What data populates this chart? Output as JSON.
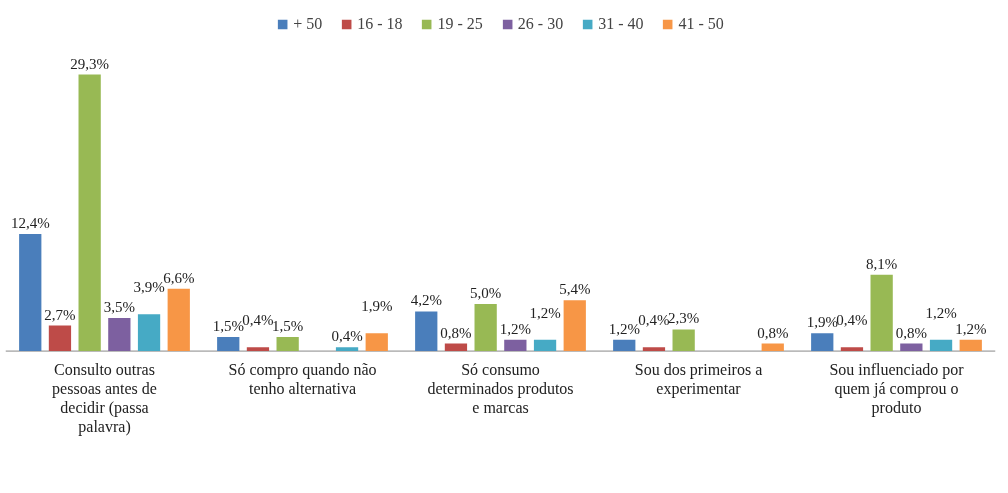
{
  "chart_data": {
    "type": "bar",
    "categories": [
      "Consulto outras pessoas antes de decidir (passa palavra)",
      "Só compro quando não tenho alternativa",
      "Só consumo determinados produtos e marcas",
      "Sou dos primeiros a experimentar",
      "Sou influenciado por quem já comprou o produto"
    ],
    "series": [
      {
        "name": "+ 50",
        "color": "#4a7ebb",
        "values": [
          12.4,
          1.5,
          4.2,
          1.2,
          1.9
        ],
        "value_labels": [
          "12,4%",
          "1,5%",
          "4,2%",
          "1,2%",
          "1,9%"
        ]
      },
      {
        "name": "16 - 18",
        "color": "#be4b48",
        "values": [
          2.7,
          0.4,
          0.8,
          0.4,
          0.4
        ],
        "value_labels": [
          "2,7%",
          "0,4%",
          "0,8%",
          "0,4%",
          "0,4%"
        ]
      },
      {
        "name": "19 - 25",
        "color": "#98b954",
        "values": [
          29.3,
          1.5,
          5.0,
          2.3,
          8.1
        ],
        "value_labels": [
          "29,3%",
          "1,5%",
          "5,0%",
          "2,3%",
          "8,1%"
        ]
      },
      {
        "name": "26 - 30",
        "color": "#7d60a0",
        "values": [
          3.5,
          null,
          1.2,
          null,
          0.8
        ],
        "value_labels": [
          "3,5%",
          null,
          "1,2%",
          null,
          "0,8%"
        ]
      },
      {
        "name": "31 - 40",
        "color": "#46aac5",
        "values": [
          3.9,
          0.4,
          1.2,
          null,
          1.2
        ],
        "value_labels": [
          "3,9%",
          "0,4%",
          "1,2%",
          null,
          "1,2%"
        ]
      },
      {
        "name": "41 - 50",
        "color": "#f79646",
        "values": [
          6.6,
          1.9,
          5.4,
          0.8,
          1.2
        ],
        "value_labels": [
          "6,6%",
          "1,9%",
          "5,4%",
          "0,8%",
          "1,2%"
        ]
      }
    ],
    "legend": "top"
  }
}
